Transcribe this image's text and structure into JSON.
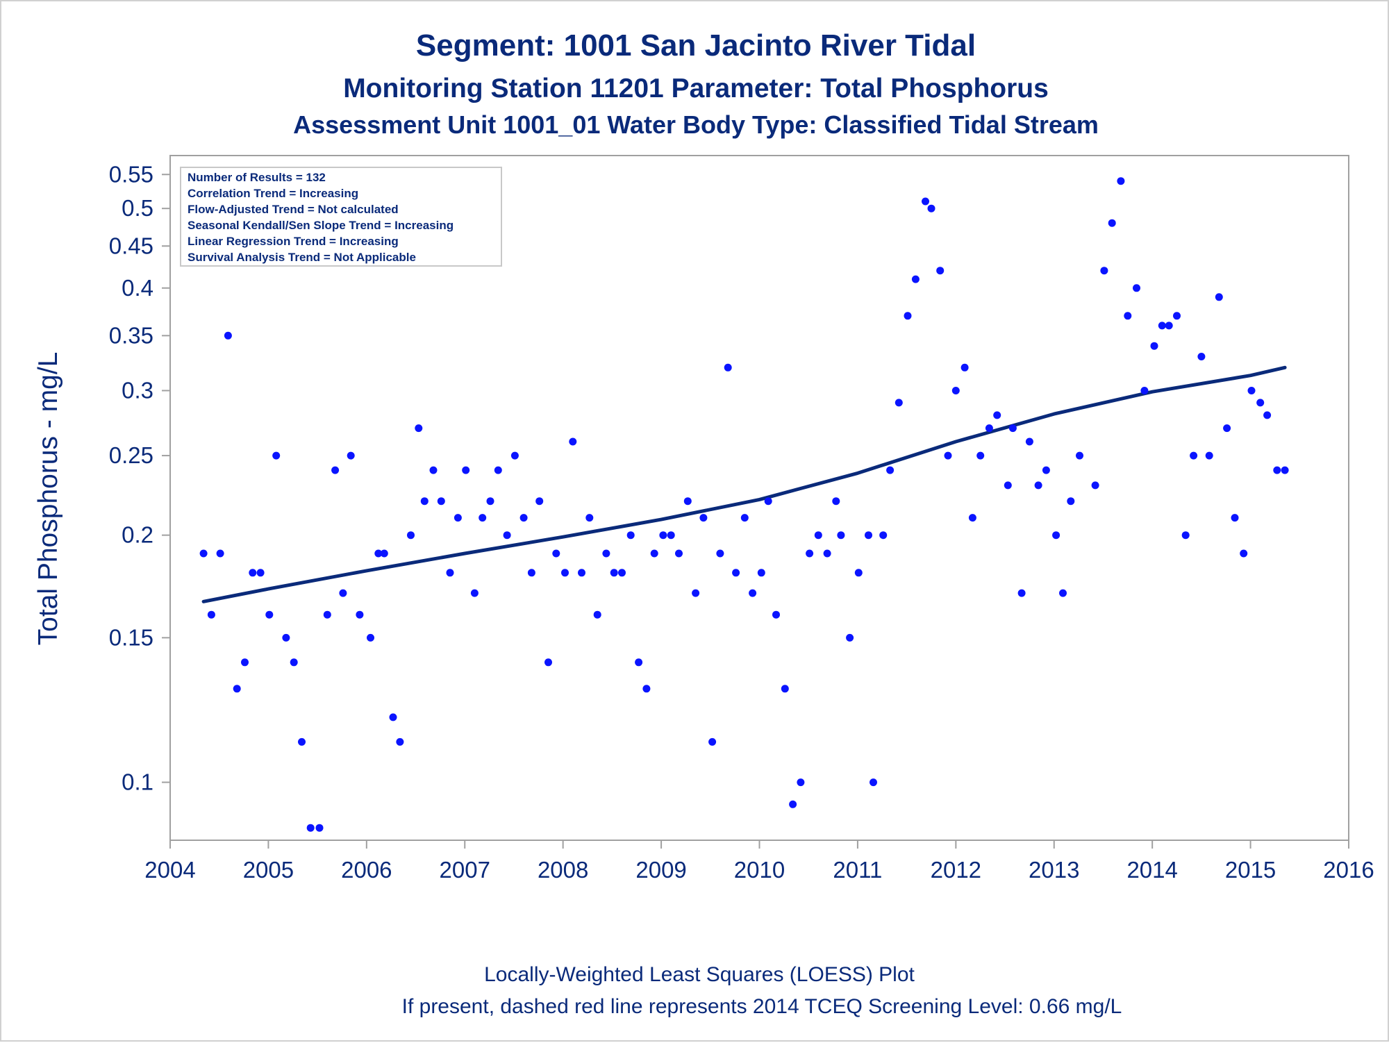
{
  "chart_data": {
    "type": "scatter",
    "title": "Segment: 1001  San Jacinto River Tidal",
    "subtitle": "Monitoring Station 11201 Parameter: Total Phosphorus",
    "subtitle2": "Assessment Unit 1001_01   Water Body Type: Classified Tidal Stream",
    "xlabel": "",
    "ylabel": "Total Phosphorus - mg/L",
    "xlim": [
      2004,
      2016
    ],
    "ylim": [
      0.085,
      0.58
    ],
    "yscale": "log",
    "x_ticks": [
      "2004",
      "2005",
      "2006",
      "2007",
      "2008",
      "2009",
      "2010",
      "2011",
      "2012",
      "2013",
      "2014",
      "2015",
      "2016"
    ],
    "y_ticks": [
      "0.1",
      "0.15",
      "0.2",
      "0.25",
      "0.3",
      "0.35",
      "0.4",
      "0.45",
      "0.5",
      "0.55"
    ],
    "grid": false,
    "legend": "none",
    "info_box": [
      "Number of Results = 132",
      "Correlation Trend = Increasing",
      "Flow-Adjusted Trend = Not calculated",
      "Seasonal Kendall/Sen Slope Trend = Increasing",
      "Linear Regression Trend = Increasing",
      "Survival Analysis Trend = Not Applicable"
    ],
    "footnote1": "Locally-Weighted Least Squares (LOESS) Plot",
    "footnote2": "If present, dashed red line represents 2014 TCEQ Screening Level: 0.66 mg/L",
    "colors": {
      "text": "#0a2a7a",
      "points": "#0a14ff",
      "trend": "#0a2a7a",
      "frame": "#a0a0a0"
    },
    "series": [
      {
        "type": "scatter",
        "points": [
          [
            2004.34,
            0.19
          ],
          [
            2004.42,
            0.16
          ],
          [
            2004.51,
            0.19
          ],
          [
            2004.59,
            0.35
          ],
          [
            2004.68,
            0.13
          ],
          [
            2004.76,
            0.14
          ],
          [
            2004.84,
            0.18
          ],
          [
            2004.92,
            0.18
          ],
          [
            2005.01,
            0.16
          ],
          [
            2005.08,
            0.25
          ],
          [
            2005.18,
            0.15
          ],
          [
            2005.26,
            0.14
          ],
          [
            2005.34,
            0.112
          ],
          [
            2005.43,
            0.088
          ],
          [
            2005.52,
            0.088
          ],
          [
            2005.6,
            0.16
          ],
          [
            2005.68,
            0.24
          ],
          [
            2005.76,
            0.17
          ],
          [
            2005.84,
            0.25
          ],
          [
            2005.93,
            0.16
          ],
          [
            2006.04,
            0.15
          ],
          [
            2006.12,
            0.19
          ],
          [
            2006.18,
            0.19
          ],
          [
            2006.27,
            0.12
          ],
          [
            2006.34,
            0.112
          ],
          [
            2006.45,
            0.2
          ],
          [
            2006.53,
            0.27
          ],
          [
            2006.59,
            0.22
          ],
          [
            2006.68,
            0.24
          ],
          [
            2006.76,
            0.22
          ],
          [
            2006.85,
            0.18
          ],
          [
            2006.93,
            0.21
          ],
          [
            2007.01,
            0.24
          ],
          [
            2007.1,
            0.17
          ],
          [
            2007.18,
            0.21
          ],
          [
            2007.26,
            0.22
          ],
          [
            2007.34,
            0.24
          ],
          [
            2007.43,
            0.2
          ],
          [
            2007.51,
            0.25
          ],
          [
            2007.6,
            0.21
          ],
          [
            2007.68,
            0.18
          ],
          [
            2007.76,
            0.22
          ],
          [
            2007.85,
            0.14
          ],
          [
            2007.93,
            0.19
          ],
          [
            2008.02,
            0.18
          ],
          [
            2008.1,
            0.26
          ],
          [
            2008.19,
            0.18
          ],
          [
            2008.27,
            0.21
          ],
          [
            2008.35,
            0.16
          ],
          [
            2008.44,
            0.19
          ],
          [
            2008.52,
            0.18
          ],
          [
            2008.6,
            0.18
          ],
          [
            2008.69,
            0.2
          ],
          [
            2008.77,
            0.14
          ],
          [
            2008.85,
            0.13
          ],
          [
            2008.93,
            0.19
          ],
          [
            2009.02,
            0.2
          ],
          [
            2009.1,
            0.2
          ],
          [
            2009.18,
            0.19
          ],
          [
            2009.27,
            0.22
          ],
          [
            2009.35,
            0.17
          ],
          [
            2009.43,
            0.21
          ],
          [
            2009.52,
            0.112
          ],
          [
            2009.6,
            0.19
          ],
          [
            2009.68,
            0.32
          ],
          [
            2009.76,
            0.18
          ],
          [
            2009.85,
            0.21
          ],
          [
            2009.93,
            0.17
          ],
          [
            2010.02,
            0.18
          ],
          [
            2010.09,
            0.22
          ],
          [
            2010.17,
            0.16
          ],
          [
            2010.26,
            0.13
          ],
          [
            2010.34,
            0.094
          ],
          [
            2010.42,
            0.1
          ],
          [
            2010.51,
            0.19
          ],
          [
            2010.6,
            0.2
          ],
          [
            2010.69,
            0.19
          ],
          [
            2010.78,
            0.22
          ],
          [
            2010.83,
            0.2
          ],
          [
            2010.92,
            0.15
          ],
          [
            2011.01,
            0.18
          ],
          [
            2011.11,
            0.2
          ],
          [
            2011.16,
            0.1
          ],
          [
            2011.26,
            0.2
          ],
          [
            2011.33,
            0.24
          ],
          [
            2011.42,
            0.29
          ],
          [
            2011.51,
            0.37
          ],
          [
            2011.59,
            0.41
          ],
          [
            2011.69,
            0.51
          ],
          [
            2011.75,
            0.5
          ],
          [
            2011.84,
            0.42
          ],
          [
            2011.92,
            0.25
          ],
          [
            2012.0,
            0.3
          ],
          [
            2012.09,
            0.32
          ],
          [
            2012.17,
            0.21
          ],
          [
            2012.25,
            0.25
          ],
          [
            2012.34,
            0.27
          ],
          [
            2012.42,
            0.28
          ],
          [
            2012.53,
            0.23
          ],
          [
            2012.58,
            0.27
          ],
          [
            2012.67,
            0.17
          ],
          [
            2012.75,
            0.26
          ],
          [
            2012.84,
            0.23
          ],
          [
            2012.92,
            0.24
          ],
          [
            2013.02,
            0.2
          ],
          [
            2013.09,
            0.17
          ],
          [
            2013.17,
            0.22
          ],
          [
            2013.26,
            0.25
          ],
          [
            2013.42,
            0.23
          ],
          [
            2013.51,
            0.42
          ],
          [
            2013.59,
            0.48
          ],
          [
            2013.68,
            0.54
          ],
          [
            2013.75,
            0.37
          ],
          [
            2013.84,
            0.4
          ],
          [
            2013.92,
            0.3
          ],
          [
            2014.02,
            0.34
          ],
          [
            2014.1,
            0.36
          ],
          [
            2014.17,
            0.36
          ],
          [
            2014.25,
            0.37
          ],
          [
            2014.34,
            0.2
          ],
          [
            2014.42,
            0.25
          ],
          [
            2014.5,
            0.33
          ],
          [
            2014.58,
            0.25
          ],
          [
            2014.68,
            0.39
          ],
          [
            2014.76,
            0.27
          ],
          [
            2014.84,
            0.21
          ],
          [
            2014.93,
            0.19
          ],
          [
            2015.01,
            0.3
          ],
          [
            2015.1,
            0.29
          ],
          [
            2015.17,
            0.28
          ],
          [
            2015.27,
            0.24
          ],
          [
            2015.35,
            0.24
          ]
        ]
      },
      {
        "type": "line",
        "points": [
          [
            2004.34,
            0.166
          ],
          [
            2005.0,
            0.172
          ],
          [
            2006.0,
            0.181
          ],
          [
            2007.0,
            0.19
          ],
          [
            2008.0,
            0.199
          ],
          [
            2009.0,
            0.209
          ],
          [
            2010.0,
            0.221
          ],
          [
            2011.0,
            0.238
          ],
          [
            2012.0,
            0.26
          ],
          [
            2013.0,
            0.281
          ],
          [
            2014.0,
            0.299
          ],
          [
            2015.0,
            0.313
          ],
          [
            2015.35,
            0.32
          ]
        ]
      }
    ]
  }
}
